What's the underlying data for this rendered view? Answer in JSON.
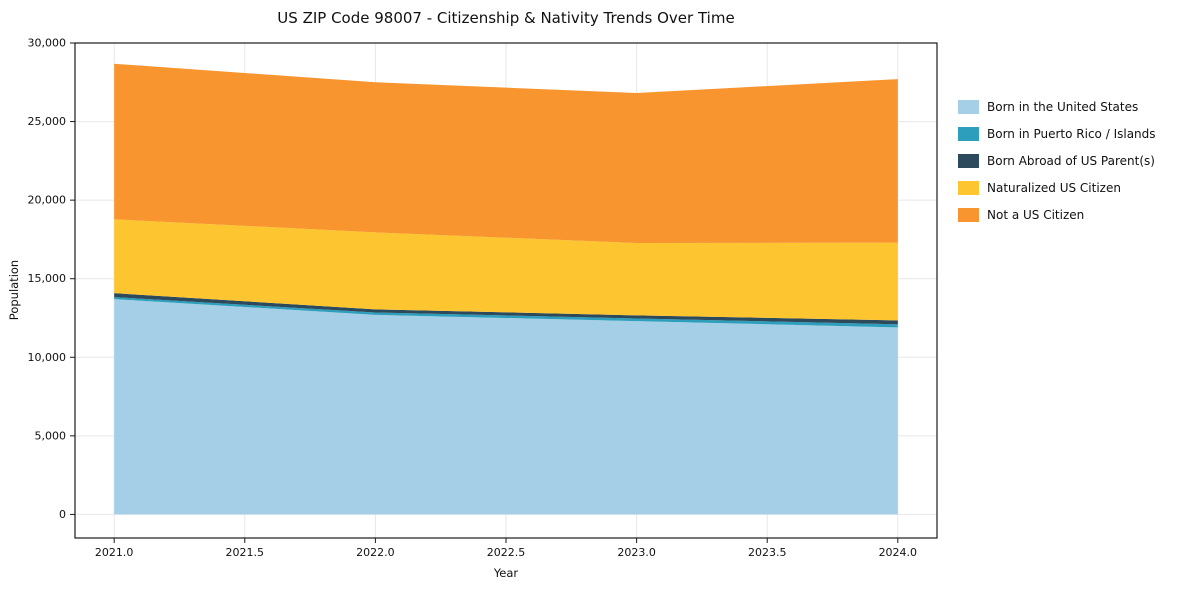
{
  "chart_data": {
    "type": "area",
    "title": "US ZIP Code 98007 - Citizenship & Nativity Trends Over Time",
    "xlabel": "Year",
    "ylabel": "Population",
    "x": [
      2021,
      2022,
      2023,
      2024
    ],
    "series": [
      {
        "name": "Born in the United States",
        "color": "#a5cfe6",
        "values": [
          13700,
          12700,
          12300,
          11900
        ]
      },
      {
        "name": "Born in Puerto Rico / Islands",
        "color": "#2d9fbc",
        "values": [
          130,
          150,
          170,
          200
        ]
      },
      {
        "name": "Born Abroad of US Parent(s)",
        "color": "#2c4a5c",
        "values": [
          250,
          200,
          200,
          250
        ]
      },
      {
        "name": "Naturalized US Citizen",
        "color": "#fdc52f",
        "values": [
          4700,
          4900,
          4600,
          4950
        ]
      },
      {
        "name": "Not a US Citizen",
        "color": "#f8952f",
        "values": [
          9900,
          9550,
          9550,
          10400
        ]
      }
    ],
    "x_ticks": [
      2021.0,
      2021.5,
      2022.0,
      2022.5,
      2023.0,
      2023.5,
      2024.0
    ],
    "x_tick_labels": [
      "2021.0",
      "2021.5",
      "2022.0",
      "2022.5",
      "2023.0",
      "2023.5",
      "2024.0"
    ],
    "y_ticks": [
      0,
      5000,
      10000,
      15000,
      20000,
      25000,
      30000
    ],
    "y_tick_labels": [
      "0",
      "5,000",
      "10,000",
      "15,000",
      "20,000",
      "25,000",
      "30,000"
    ],
    "xlim": [
      2020.85,
      2024.15
    ],
    "ylim": [
      -1500,
      30000
    ],
    "grid": true,
    "legend_position": "right"
  },
  "colors": {
    "grid": "#e7e7e7",
    "spine": "#1a1a1a",
    "background": "#ffffff"
  }
}
